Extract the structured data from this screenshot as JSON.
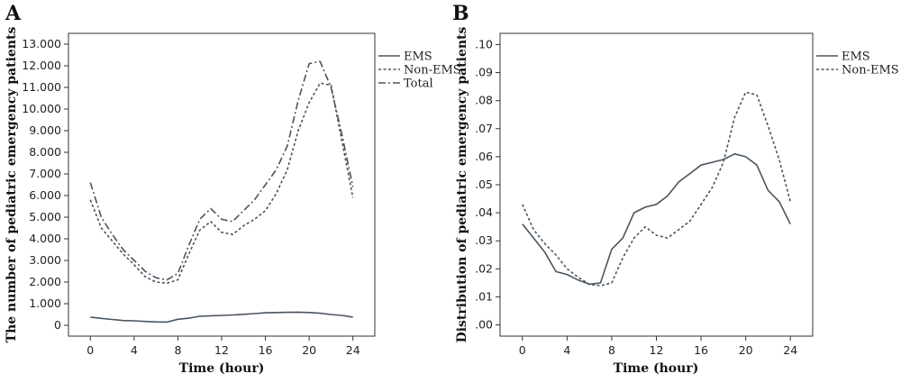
{
  "chart_data": [
    {
      "panel": "A",
      "type": "line",
      "xlabel": "Time (hour)",
      "ylabel": "The number of pediatric emergency patients",
      "xlim": [
        -2,
        26
      ],
      "ylim": [
        -500,
        13500
      ],
      "xticks": [
        0,
        4,
        8,
        12,
        16,
        20,
        24
      ],
      "yticks": [
        0,
        1000,
        2000,
        3000,
        4000,
        5000,
        6000,
        7000,
        8000,
        9000,
        10000,
        11000,
        12000,
        13000
      ],
      "yticklabels": [
        "0",
        "1.000",
        "2.000",
        "3.000",
        "4.000",
        "5.000",
        "6.000",
        "7.000",
        "8.000",
        "9.000",
        "10.000",
        "11.000",
        "12.000",
        "13.000"
      ],
      "legend_position": "right-top-outside",
      "x": [
        0,
        1,
        2,
        3,
        4,
        5,
        6,
        7,
        8,
        9,
        10,
        11,
        12,
        13,
        14,
        15,
        16,
        17,
        18,
        19,
        20,
        21,
        22,
        23,
        24
      ],
      "series": [
        {
          "name": "EMS",
          "style": "solid",
          "values": [
            380,
            320,
            270,
            220,
            210,
            180,
            160,
            150,
            280,
            330,
            420,
            440,
            460,
            480,
            510,
            540,
            580,
            590,
            600,
            610,
            590,
            560,
            500,
            460,
            380
          ]
        },
        {
          "name": "Non-EMS",
          "style": "dotted",
          "values": [
            5800,
            4500,
            3900,
            3300,
            2800,
            2250,
            2000,
            1950,
            2100,
            3300,
            4400,
            4800,
            4300,
            4200,
            4600,
            4900,
            5300,
            6100,
            7200,
            9000,
            10300,
            11200,
            11100,
            8500,
            5900
          ]
        },
        {
          "name": "Total",
          "style": "dashdot",
          "values": [
            6600,
            5000,
            4200,
            3500,
            3000,
            2500,
            2200,
            2100,
            2400,
            3700,
            4900,
            5400,
            4900,
            4800,
            5300,
            5800,
            6500,
            7200,
            8300,
            10400,
            12100,
            12200,
            11000,
            8800,
            6400
          ]
        }
      ]
    },
    {
      "panel": "B",
      "type": "line",
      "xlabel": "Time (hour)",
      "ylabel": "Distribution of pediatric emergency patients",
      "xlim": [
        -2,
        26
      ],
      "ylim": [
        -0.004,
        0.104
      ],
      "xticks": [
        0,
        4,
        8,
        12,
        16,
        20,
        24
      ],
      "yticks": [
        0.0,
        0.01,
        0.02,
        0.03,
        0.04,
        0.05,
        0.06,
        0.07,
        0.08,
        0.09,
        0.1
      ],
      "yticklabels": [
        ".00",
        ".01",
        ".02",
        ".03",
        ".04",
        ".05",
        ".06",
        ".07",
        ".08",
        ".09",
        ".10"
      ],
      "legend_position": "right-top-outside",
      "x": [
        0,
        1,
        2,
        3,
        4,
        5,
        6,
        7,
        8,
        9,
        10,
        11,
        12,
        13,
        14,
        15,
        16,
        17,
        18,
        19,
        20,
        21,
        22,
        23,
        24
      ],
      "series": [
        {
          "name": "EMS",
          "style": "solid",
          "values": [
            0.036,
            0.031,
            0.026,
            0.019,
            0.018,
            0.016,
            0.0145,
            0.015,
            0.027,
            0.031,
            0.04,
            0.042,
            0.043,
            0.046,
            0.051,
            0.054,
            0.057,
            0.058,
            0.059,
            0.061,
            0.06,
            0.057,
            0.048,
            0.044,
            0.036
          ]
        },
        {
          "name": "Non-EMS",
          "style": "dotted",
          "values": [
            0.043,
            0.034,
            0.029,
            0.025,
            0.02,
            0.017,
            0.0145,
            0.014,
            0.015,
            0.024,
            0.031,
            0.035,
            0.032,
            0.031,
            0.034,
            0.037,
            0.043,
            0.049,
            0.058,
            0.074,
            0.083,
            0.082,
            0.071,
            0.059,
            0.044
          ]
        }
      ]
    }
  ]
}
